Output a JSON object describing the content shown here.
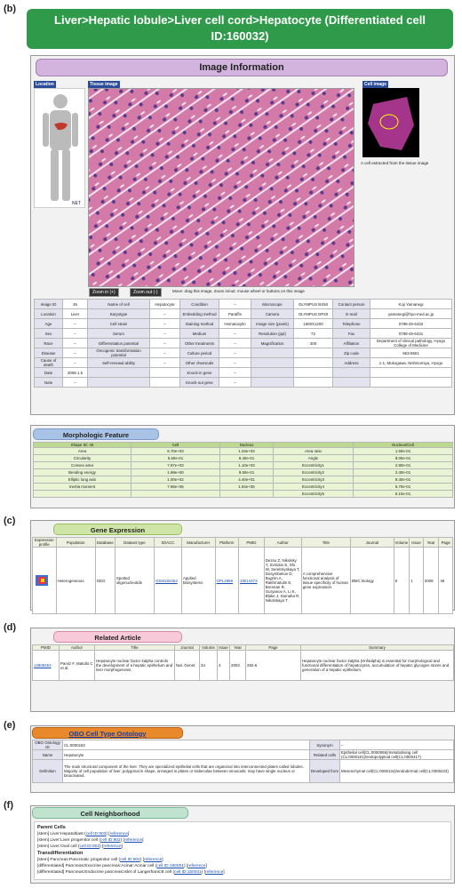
{
  "panel_labels": {
    "b": "(b)",
    "c": "(c)",
    "d": "(d)",
    "e": "(e)",
    "f": "(f)"
  },
  "banner": {
    "line1": "Liver>Hepatic lobule>Liver cell cord>Hepatocyte (Differentiated cell",
    "line2": "ID:160032)"
  },
  "image_info": {
    "title": "Image Information",
    "location_label": "Location",
    "tissue_label": "Tissue image",
    "cell_label": "Cell image",
    "cell_caption": "A cell extracted from the tissue image",
    "zoom_in": "Zoom in (+)",
    "zoom_out": "Zoom out (-)",
    "zoom_hint": "Move: drag this image,   Zoom in/out: mouse wheel or buttons on this image",
    "logo": "NET"
  },
  "info_rows": [
    [
      "Image ID",
      "45",
      "Name of cell",
      "Hepatocyte",
      "Condition",
      "–",
      "Microscope",
      "OLYMPUS BX50",
      "Contact person",
      "Koji Yamanegi"
    ],
    [
      "Location",
      "Liver",
      "Karyotype",
      "–",
      "Embedding method",
      "Paraffin",
      "Camera",
      "OLYMPUS DP20",
      "E-mail",
      "yamanegi@hyo-med.ac.jp"
    ],
    [
      "Age",
      "–",
      "Cell strain",
      "–",
      "Staining method",
      "Hematoxylin",
      "Image size (pixels)",
      "1600X1200",
      "Telephone",
      "0798-45-6432"
    ],
    [
      "Sex",
      "–",
      "Serum",
      "–",
      "Medium",
      "–",
      "Resolution (ppi)",
      "72",
      "Fax",
      "0798-45-6431"
    ],
    [
      "Race",
      "–",
      "Differentiation potential",
      "–",
      "Other treatments",
      "–",
      "Magnification",
      "400",
      "Affiliation",
      "Department of clinical pathology, Hyogo College of Medicine"
    ],
    [
      "Disease",
      "–",
      "Oncogenic transformation potential",
      "–",
      "Culture period",
      "–",
      "",
      "",
      "Zip code",
      "663-8501"
    ],
    [
      "Cause of death",
      "–",
      "Self-renewal ability",
      "–",
      "Other chemicals",
      "–",
      "",
      "",
      "Address",
      "1-1, Mukogawa, Nishinomiya, Hyogo"
    ],
    [
      "Date",
      "2008.1.5",
      "",
      "",
      "Knock-in gene",
      "–",
      "",
      "",
      "",
      ""
    ],
    [
      "Note",
      "–",
      "",
      "",
      "Knock-out gene",
      "–",
      "",
      "",
      "",
      ""
    ]
  ],
  "morph": {
    "title": "Morphologic Feature",
    "headers": [
      "Shape ID: 45",
      "Cell",
      "Nucleus",
      "",
      "Nucleus/Cell"
    ],
    "rows": [
      [
        "Area",
        "6.70e+03",
        "1.03e+03",
        "Area ratio",
        "1.50e-01"
      ],
      [
        "Circularity",
        "5.50e-01",
        "8.40e-01",
        "Angle",
        "9.00e-01"
      ],
      [
        "Convex area",
        "7.87e+03",
        "1.10e+03",
        "Eccentricity1",
        "2.80e-01"
      ],
      [
        "Bending energy",
        "1.88e+00",
        "9.50e-01",
        "Eccentricity2",
        "2.40e-01"
      ],
      [
        "Elliptic long axis",
        "1.00e+02",
        "4.40e+01",
        "Eccentricity3",
        "8.40e-01"
      ],
      [
        "Inertia moment",
        "7.86e+06",
        "1.84e+05",
        "Eccentricity4",
        "5.70e-01"
      ],
      [
        "",
        "",
        "",
        "Eccentricity5",
        "6.10e-01"
      ]
    ]
  },
  "gene": {
    "title": "Gene Expression",
    "headers": [
      "Expression profile",
      "Population",
      "Database",
      "Dataset type",
      "ID/ACC",
      "Manufacturer",
      "Platform",
      "PMID",
      "Author",
      "Title",
      "Journal",
      "Volume",
      "Issue",
      "Year",
      "Page"
    ],
    "row": [
      "",
      "Heterogeneous",
      "GEO",
      "Spotted oligonucleotide",
      "GSM184453",
      "Applied Biosystems",
      "GPL2986",
      "18014473",
      "Dezso Z, Nikolsky Y, Sviridov E, Shi W, Serebriyskaya T, Dosymbekov D, Bugrim A, Rakhmatulin E, Brennan R, Guryanov A, Li K, Blake J, Samaha R, Nikolskaya T",
      "A comprehensive functional analysis of tissue specificity of human gene expression.",
      "BMC biology",
      "5",
      "1",
      "2008",
      "49"
    ]
  },
  "article": {
    "title": "Related Article",
    "headers": [
      "PMID",
      "Author",
      "Title",
      "Journal",
      "Volume",
      "Issue",
      "Year",
      "Page",
      "Summary"
    ],
    "row": [
      "12808453",
      "Parviz F, Matullo C et al.",
      "Hepatocyte nuclear factor 4alpha controls the development of a hepatic epithelium and liver morphogenesis.",
      "Nat. Genet.",
      "34",
      "3",
      "2003",
      "292-6",
      "Hepatocyte nuclear factor 4alpha (Hnf4alpha) is essential for morphological and functional differentiation of hepatocytes, accumulation of hepatic glycogen stores and generation of a hepatic epithelium."
    ]
  },
  "obo": {
    "title": "OBO Cell Type Ontology",
    "id_label": "OBO Ontology ID",
    "id": "CL:0000182",
    "synonym_label": "Synonym",
    "synonym": "–",
    "name_label": "Name",
    "name": "Hepatocyte",
    "related_label": "Related cells",
    "related": "Epithelial cell(CL:0000066)/metabolising cell (CL:0000181)/endopolyploid cell(CL:0000417)",
    "def_label": "Definition",
    "definition": "The main structural component of the liver. They are specialized epithelial cells that are organized into interconnected plates called lobules. Majority of cell population of liver, polygonal in shape, arranged in plates or trabeculae between sinusoids; may have single nucleus or binucleated.",
    "dev_label": "Developed from",
    "developed": "Mesenchymal cell(CL:0000134)/endodermal cell(CL:0000223)"
  },
  "neighborhood": {
    "title": "Cell Neighborhood",
    "parent_title": "Parent Cells",
    "parents": [
      {
        "text": "[stem] Liver:Hepatoblast (",
        "id": "cell ID:903",
        "ref": "reference"
      },
      {
        "text": "[stem] Liver:Liver progenitor cell (",
        "id": "cell ID:902",
        "ref": "reference"
      },
      {
        "text": "[stem] Liver:Oval cell (",
        "id": "cell ID:903",
        "ref": "reference"
      }
    ],
    "trans_title": "Transdifferentiation",
    "trans": [
      {
        "text": "[stem] Pancreas:Pancreatic progenitor cell (",
        "id": "cell ID:902",
        "ref": "reference"
      },
      {
        "text": "[differentiated] Pancreas:Exocrine pancreas:Acinar:Acinar cell (",
        "id": "cell ID:150001",
        "ref": "reference"
      },
      {
        "text": "[differentiated] Pancreas:Endocrine pancreas:Islet of Langerhans:B cell (",
        "id": "cell ID:150041",
        "ref": "reference"
      }
    ]
  },
  "colors": {
    "banner": "#2f9a4a",
    "image_info": "#d3b4de",
    "morph": "#a9c3e6",
    "gene": "#cfe5a8",
    "article": "#f7c9d9",
    "obo": "#e8892b",
    "neighborhood": "#bfe3cf"
  }
}
